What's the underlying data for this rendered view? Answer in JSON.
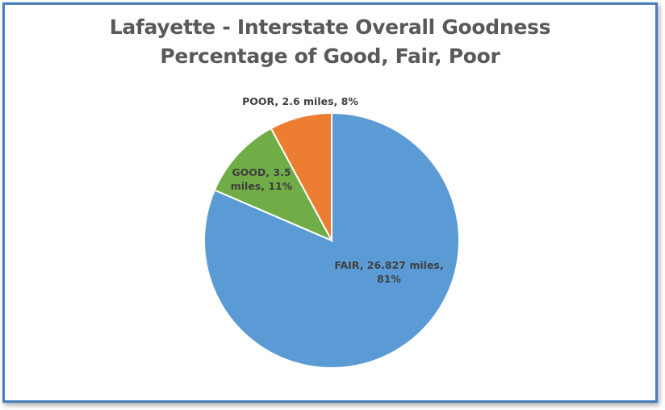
{
  "chart_data": {
    "type": "pie",
    "title_line1": "Lafayette - Interstate Overall Goodness",
    "title_line2": "Percentage of Good, Fair, Poor",
    "slices": [
      {
        "name": "FAIR",
        "miles": 26.827,
        "percent": 81,
        "color": "#5b9bd5",
        "label_lines": [
          "FAIR, 26.827 miles,",
          "81%"
        ]
      },
      {
        "name": "GOOD",
        "miles": 3.5,
        "percent": 11,
        "color": "#70ad47",
        "label_lines": [
          "GOOD, 3.5",
          "miles, 11%"
        ]
      },
      {
        "name": "POOR",
        "miles": 2.6,
        "percent": 8,
        "color": "#ed7d31",
        "label_lines": [
          "POOR, 2.6 miles, 8%"
        ]
      }
    ],
    "start_angle_deg": 0,
    "direction": "clockwise",
    "legend": "none",
    "border_color": "#4a7ebb"
  }
}
